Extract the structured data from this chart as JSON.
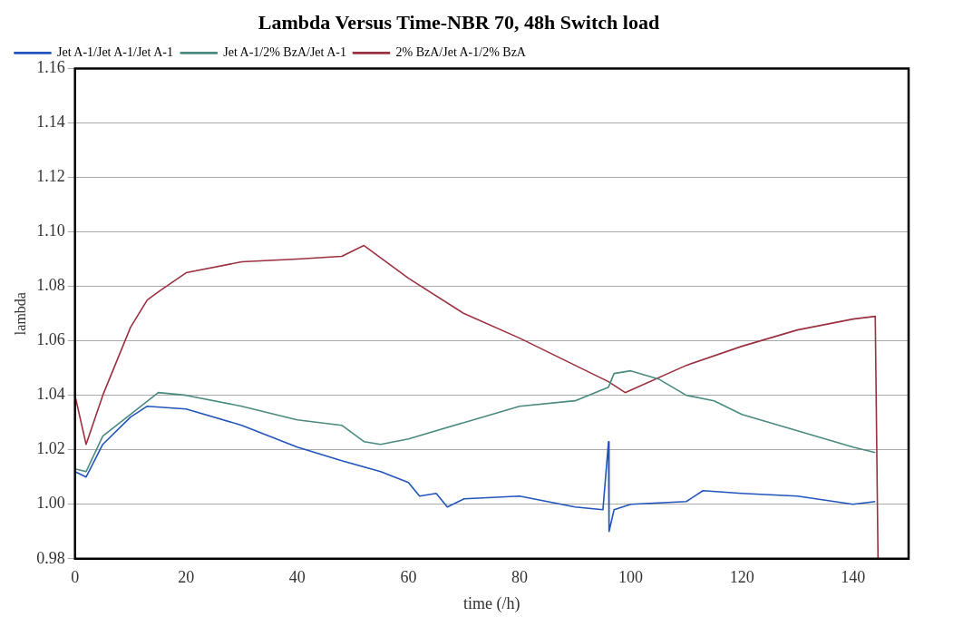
{
  "chart_data": {
    "type": "line",
    "title": "Lambda Versus Time-NBR 70, 48h Switch load",
    "xlabel": "time (/h)",
    "ylabel": "lambda",
    "xlim": [
      0,
      150
    ],
    "xticks": [
      0,
      20,
      40,
      60,
      80,
      100,
      120,
      140
    ],
    "ylim": [
      0.98,
      1.16
    ],
    "yticks": [
      0.98,
      {
        "value": 1.0,
        "label": "1.00"
      },
      1.02,
      1.04,
      1.06,
      1.08,
      {
        "value": 1.1,
        "label": "1.10"
      },
      1.12,
      1.14,
      1.16
    ],
    "grid": "y",
    "legend": "top",
    "marker": "none",
    "line_style": "solid",
    "series": [
      {
        "name": "Jet A-1/Jet A-1/Jet A-1",
        "color": "#2255bb",
        "x": [
          0,
          2,
          5,
          10,
          13,
          20,
          30,
          40,
          48,
          55,
          60,
          62,
          65,
          67,
          70,
          80,
          90,
          95,
          96,
          96.1,
          97,
          100,
          110,
          113,
          120,
          130,
          140,
          144
        ],
        "values": [
          1.012,
          1.01,
          1.022,
          1.032,
          1.036,
          1.035,
          1.029,
          1.021,
          1.016,
          1.012,
          1.008,
          1.003,
          1.004,
          0.999,
          1.002,
          1.003,
          0.999,
          0.998,
          1.023,
          0.99,
          0.998,
          1.0,
          1.001,
          1.005,
          1.004,
          1.003,
          1.0,
          1.001
        ]
      },
      {
        "name": "Jet A-1/2% BzA/Jet A-1",
        "color": "#4a8a80",
        "x": [
          0,
          2,
          5,
          10,
          15,
          20,
          30,
          40,
          48,
          52,
          55,
          60,
          70,
          80,
          90,
          96,
          97,
          100,
          105,
          110,
          115,
          120,
          130,
          140,
          144
        ],
        "values": [
          1.013,
          1.012,
          1.025,
          1.033,
          1.041,
          1.04,
          1.036,
          1.031,
          1.029,
          1.023,
          1.022,
          1.024,
          1.03,
          1.036,
          1.038,
          1.043,
          1.048,
          1.049,
          1.046,
          1.04,
          1.038,
          1.033,
          1.027,
          1.021,
          1.019
        ]
      },
      {
        "name": "2% BzA/Jet A-1/2% BzA",
        "color": "#9b3040",
        "x": [
          0,
          2,
          5,
          10,
          13,
          15,
          20,
          30,
          40,
          48,
          52,
          60,
          70,
          80,
          90,
          96,
          99,
          110,
          120,
          130,
          140,
          144,
          144.5
        ],
        "values": [
          1.04,
          1.022,
          1.04,
          1.065,
          1.075,
          1.078,
          1.085,
          1.089,
          1.09,
          1.091,
          1.095,
          1.083,
          1.07,
          1.061,
          1.051,
          1.045,
          1.041,
          1.051,
          1.058,
          1.064,
          1.068,
          1.069,
          0.98
        ]
      }
    ]
  }
}
